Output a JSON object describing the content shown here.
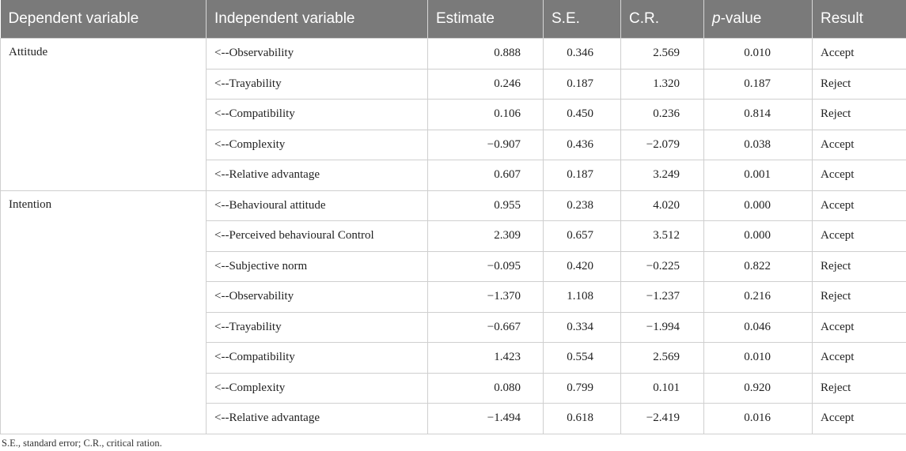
{
  "headers": {
    "dependent": "Dependent variable",
    "independent": "Independent variable",
    "estimate": "Estimate",
    "se": "S.E.",
    "cr": "C.R.",
    "p_italic": "p",
    "p_rest": "-value",
    "result": "Result"
  },
  "groups": [
    {
      "dependent": "Attitude",
      "rows": [
        {
          "independent": "<--Observability",
          "estimate": "0.888",
          "se": "0.346",
          "cr": "2.569",
          "p": "0.010",
          "result": "Accept"
        },
        {
          "independent": "<--Trayability",
          "estimate": "0.246",
          "se": "0.187",
          "cr": "1.320",
          "p": "0.187",
          "result": "Reject"
        },
        {
          "independent": "<--Compatibility",
          "estimate": "0.106",
          "se": "0.450",
          "cr": "0.236",
          "p": "0.814",
          "result": "Reject"
        },
        {
          "independent": "<--Complexity",
          "estimate": "−0.907",
          "se": "0.436",
          "cr": "−2.079",
          "p": "0.038",
          "result": "Accept"
        },
        {
          "independent": "<--Relative advantage",
          "estimate": "0.607",
          "se": "0.187",
          "cr": "3.249",
          "p": "0.001",
          "result": "Accept"
        }
      ]
    },
    {
      "dependent": "Intention",
      "rows": [
        {
          "independent": "<--Behavioural attitude",
          "estimate": "0.955",
          "se": "0.238",
          "cr": "4.020",
          "p": "0.000",
          "result": "Accept"
        },
        {
          "independent": "<--Perceived behavioural Control",
          "estimate": "2.309",
          "se": "0.657",
          "cr": "3.512",
          "p": "0.000",
          "result": "Accept"
        },
        {
          "independent": "<--Subjective norm",
          "estimate": "−0.095",
          "se": "0.420",
          "cr": "−0.225",
          "p": "0.822",
          "result": "Reject"
        },
        {
          "independent": "<--Observability",
          "estimate": "−1.370",
          "se": "1.108",
          "cr": "−1.237",
          "p": "0.216",
          "result": "Reject"
        },
        {
          "independent": "<--Trayability",
          "estimate": "−0.667",
          "se": "0.334",
          "cr": "−1.994",
          "p": "0.046",
          "result": "Accept"
        },
        {
          "independent": "<--Compatibility",
          "estimate": "1.423",
          "se": "0.554",
          "cr": "2.569",
          "p": "0.010",
          "result": "Accept"
        },
        {
          "independent": "<--Complexity",
          "estimate": "0.080",
          "se": "0.799",
          "cr": "0.101",
          "p": "0.920",
          "result": "Reject"
        },
        {
          "independent": "<--Relative advantage",
          "estimate": "−1.494",
          "se": "0.618",
          "cr": "−2.419",
          "p": "0.016",
          "result": "Accept"
        }
      ]
    }
  ],
  "footnote": "S.E., standard error; C.R., critical ration.",
  "colors": {
    "header_bg": "#7a7a7a",
    "header_text": "#ffffff",
    "border": "#cfcfcf"
  }
}
